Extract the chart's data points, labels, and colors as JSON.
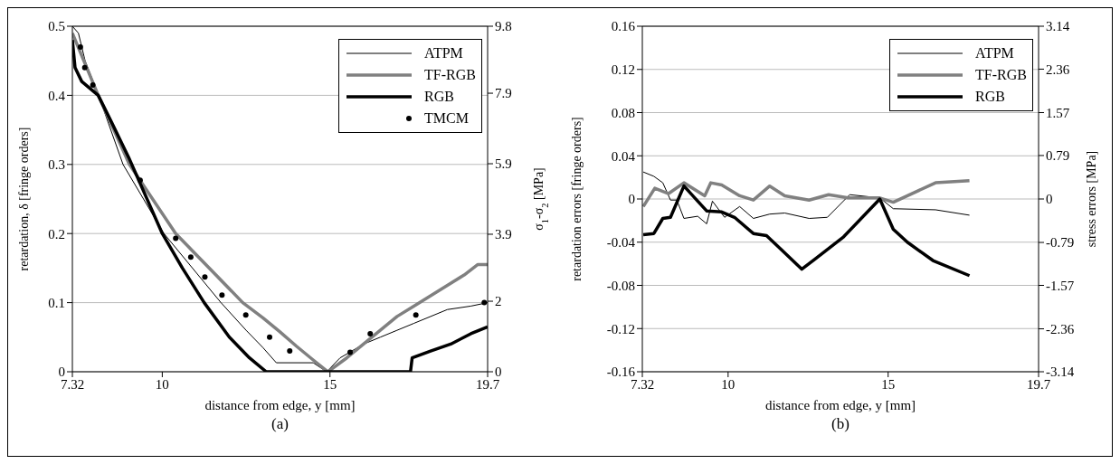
{
  "chart_data": [
    {
      "type": "line",
      "title": "(a)",
      "xlabel": "distance from edge, y [mm]",
      "ylabel": "retardation, δ [fringe orders]",
      "y2label": "σ$_{1}$-σ$_{2}$ [MPa]",
      "xlim": [
        7.32,
        19.7
      ],
      "xticks": [
        7.32,
        10,
        15,
        19.7
      ],
      "ylim": [
        0,
        0.5
      ],
      "yticks": [
        0,
        0.1,
        0.2,
        0.3,
        0.4,
        0.5
      ],
      "y2lim": [
        0,
        9.8
      ],
      "y2ticks": [
        0,
        2,
        3.9,
        5.9,
        7.9,
        9.8
      ],
      "grid": "y",
      "legend": "top right",
      "series": [
        {
          "name": "ATPM",
          "color": "#000000",
          "x": [
            7.32,
            7.5,
            7.7,
            8.1,
            8.83,
            10.05,
            11.75,
            12.5,
            13.0,
            13.4,
            14.5,
            14.9,
            15.3,
            16.0,
            16.5,
            17.0,
            17.5,
            18.0,
            18.5,
            19.2,
            19.7
          ],
          "values": [
            0.5,
            0.49,
            0.45,
            0.4,
            0.3,
            0.2,
            0.1,
            0.06,
            0.035,
            0.013,
            0.013,
            0,
            0.02,
            0.04,
            0.05,
            0.06,
            0.07,
            0.08,
            0.09,
            0.095,
            0.1
          ]
        },
        {
          "name": "TF-RGB",
          "color": "#808080",
          "x": [
            7.32,
            8.09,
            9.02,
            10.4,
            12.4,
            13.0,
            13.5,
            14.0,
            14.5,
            14.94,
            15.5,
            16.0,
            16.5,
            17.0,
            17.5,
            18.0,
            18.5,
            19.0,
            19.4,
            19.7
          ],
          "values": [
            0.49,
            0.4,
            0.3,
            0.2,
            0.1,
            0.078,
            0.058,
            0.037,
            0.017,
            0,
            0.02,
            0.04,
            0.06,
            0.08,
            0.095,
            0.11,
            0.125,
            0.14,
            0.155,
            0.155
          ]
        },
        {
          "name": "RGB",
          "color": "#000000",
          "x": [
            7.32,
            7.4,
            7.6,
            8.09,
            8.5,
            9.0,
            10.0,
            10.6,
            11.25,
            12.0,
            12.6,
            13.1,
            17.4,
            17.45,
            18.0,
            18.6,
            19.2,
            19.7
          ],
          "values": [
            0.48,
            0.44,
            0.42,
            0.4,
            0.36,
            0.31,
            0.2,
            0.15,
            0.1,
            0.05,
            0.02,
            0,
            0,
            0.02,
            0.03,
            0.04,
            0.055,
            0.065
          ]
        },
        {
          "name": "TMCM",
          "type": "scatter",
          "marker": "circle",
          "color": "#000000",
          "x": [
            7.56,
            7.69,
            7.93,
            9.34,
            10.4,
            10.85,
            11.27,
            11.78,
            12.49,
            13.2,
            13.8,
            15.6,
            16.2,
            17.56,
            19.6
          ],
          "values": [
            0.47,
            0.44,
            0.415,
            0.277,
            0.193,
            0.166,
            0.137,
            0.111,
            0.082,
            0.05,
            0.03,
            0.028,
            0.055,
            0.082,
            0.1
          ]
        }
      ]
    },
    {
      "type": "line",
      "title": "(b)",
      "xlabel": "distance from edge, y [mm]",
      "ylabel": "retardation errors [fringe orders]",
      "y2label": "stress errors [MPa]",
      "xlim": [
        7.32,
        19.7
      ],
      "xticks": [
        7.32,
        10,
        15,
        19.7
      ],
      "ylim": [
        -0.16,
        0.16
      ],
      "yticks": [
        -0.16,
        -0.12,
        -0.08,
        -0.04,
        0,
        0.04,
        0.08,
        0.12,
        0.16
      ],
      "y2lim": [
        -3.14,
        3.14
      ],
      "y2ticks": [
        -3.14,
        -2.36,
        -1.57,
        -0.79,
        0,
        0.79,
        1.57,
        2.36,
        3.14
      ],
      "grid": "y",
      "legend": "top right",
      "series": [
        {
          "name": "ATPM",
          "color": "#000000",
          "x": [
            7.35,
            7.68,
            7.96,
            8.2,
            8.4,
            8.62,
            9.05,
            9.33,
            9.51,
            9.89,
            10.36,
            10.79,
            11.3,
            11.77,
            12.53,
            13.1,
            13.8,
            14.74,
            15.16,
            16.48,
            17.54
          ],
          "values": [
            0.025,
            0.021,
            0.015,
            -0.001,
            -0.001,
            -0.018,
            -0.016,
            -0.023,
            -0.002,
            -0.017,
            -0.007,
            -0.018,
            -0.014,
            -0.013,
            -0.018,
            -0.017,
            0.004,
            0.001,
            -0.009,
            -0.01,
            -0.015
          ]
        },
        {
          "name": "TF-RGB",
          "color": "#808080",
          "x": [
            7.35,
            7.71,
            8.14,
            8.62,
            9.27,
            9.46,
            9.8,
            10.36,
            10.79,
            11.3,
            11.77,
            12.53,
            13.14,
            13.75,
            14.74,
            15.16,
            16.48,
            17.54
          ],
          "values": [
            -0.007,
            0.01,
            0.005,
            0.015,
            0.003,
            0.015,
            0.013,
            0.003,
            -0.001,
            0.012,
            0.003,
            -0.001,
            0.004,
            0.001,
            0.001,
            -0.003,
            0.015,
            0.017
          ]
        },
        {
          "name": "RGB",
          "color": "#000000",
          "x": [
            7.35,
            7.68,
            7.96,
            8.2,
            8.62,
            9.05,
            9.33,
            9.8,
            10.2,
            10.79,
            11.2,
            11.7,
            12.3,
            12.7,
            13.61,
            14.74,
            15.16,
            15.6,
            16.4,
            17.54
          ],
          "values": [
            -0.033,
            -0.032,
            -0.018,
            -0.017,
            0.012,
            -0.002,
            -0.011,
            -0.012,
            -0.017,
            -0.032,
            -0.034,
            -0.048,
            -0.065,
            -0.056,
            -0.035,
            0,
            -0.028,
            -0.04,
            -0.057,
            -0.071
          ]
        }
      ]
    }
  ]
}
